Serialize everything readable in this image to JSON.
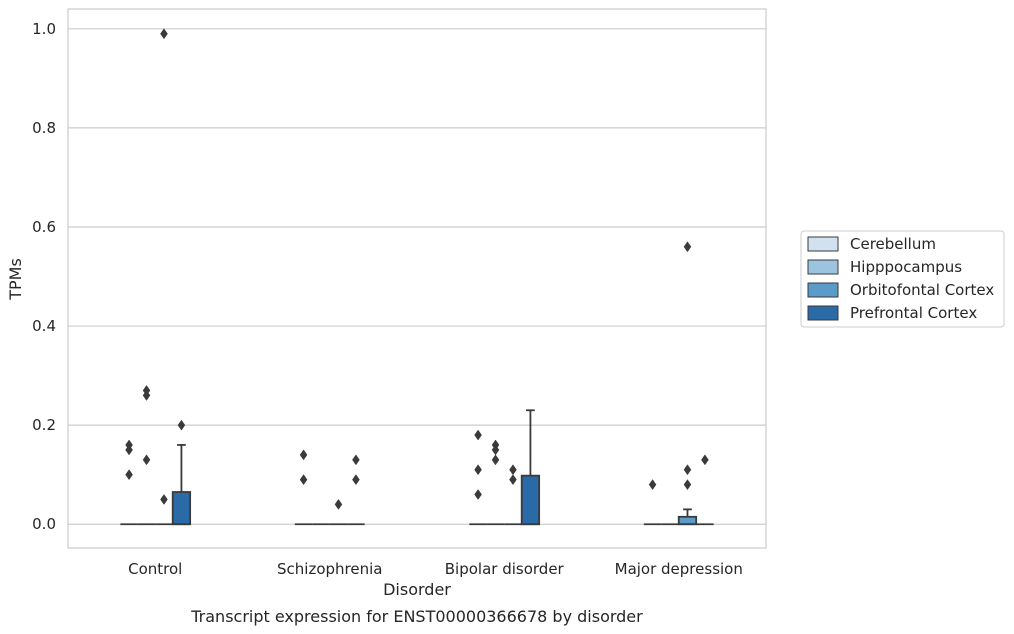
{
  "chart_data": {
    "type": "box",
    "xlabel": "Disorder",
    "ylabel": "TPMs",
    "caption": "Transcript expression for ENST00000366678 by disorder",
    "categories": [
      "Control",
      "Schizophrenia",
      "Bipolar disorder",
      "Major depression"
    ],
    "ylim": [
      -0.048,
      1.04
    ],
    "yticks": [
      0.0,
      0.2,
      0.4,
      0.6,
      0.8,
      1.0
    ],
    "ytick_labels": [
      "0.0",
      "0.2",
      "0.4",
      "0.6",
      "0.8",
      "1.0"
    ],
    "grid": "horizontal",
    "legend_position": "right",
    "series": [
      {
        "name": "Cerebellum",
        "color": "#d1e1f0",
        "boxes": [
          {
            "q1": 0,
            "median": 0,
            "q3": 0,
            "whisker_low": 0,
            "whisker_high": 0,
            "outliers": [
              0.1,
              0.15,
              0.16
            ]
          },
          {
            "q1": 0,
            "median": 0,
            "q3": 0,
            "whisker_low": 0,
            "whisker_high": 0,
            "outliers": [
              0.09,
              0.14
            ]
          },
          {
            "q1": 0,
            "median": 0,
            "q3": 0,
            "whisker_low": 0,
            "whisker_high": 0,
            "outliers": [
              0.06,
              0.11,
              0.18
            ]
          },
          {
            "q1": 0,
            "median": 0,
            "q3": 0,
            "whisker_low": 0,
            "whisker_high": 0,
            "outliers": [
              0.08
            ]
          }
        ]
      },
      {
        "name": "Hipppocampus",
        "color": "#9cc4df",
        "boxes": [
          {
            "q1": 0,
            "median": 0,
            "q3": 0,
            "whisker_low": 0,
            "whisker_high": 0,
            "outliers": [
              0.13,
              0.26,
              0.27
            ]
          },
          {
            "q1": 0,
            "median": 0,
            "q3": 0,
            "whisker_low": 0,
            "whisker_high": 0,
            "outliers": []
          },
          {
            "q1": 0,
            "median": 0,
            "q3": 0,
            "whisker_low": 0,
            "whisker_high": 0,
            "outliers": [
              0.13,
              0.15,
              0.16
            ]
          },
          {
            "q1": 0,
            "median": 0,
            "q3": 0,
            "whisker_low": 0,
            "whisker_high": 0,
            "outliers": []
          }
        ]
      },
      {
        "name": "Orbitofontal Cortex",
        "color": "#5b9bc9",
        "boxes": [
          {
            "q1": 0,
            "median": 0,
            "q3": 0,
            "whisker_low": 0,
            "whisker_high": 0,
            "outliers": [
              0.05,
              0.99
            ]
          },
          {
            "q1": 0,
            "median": 0,
            "q3": 0,
            "whisker_low": 0,
            "whisker_high": 0,
            "outliers": [
              0.04
            ]
          },
          {
            "q1": 0,
            "median": 0,
            "q3": 0,
            "whisker_low": 0,
            "whisker_high": 0,
            "outliers": [
              0.09,
              0.11
            ]
          },
          {
            "q1": 0,
            "median": 0,
            "q3": 0.015,
            "whisker_low": 0,
            "whisker_high": 0.03,
            "outliers": [
              0.08,
              0.11,
              0.56
            ]
          }
        ]
      },
      {
        "name": "Prefrontal Cortex",
        "color": "#2a6aa6",
        "boxes": [
          {
            "q1": 0,
            "median": 0,
            "q3": 0.065,
            "whisker_low": 0,
            "whisker_high": 0.16,
            "outliers": [
              0.2
            ]
          },
          {
            "q1": 0,
            "median": 0,
            "q3": 0,
            "whisker_low": 0,
            "whisker_high": 0,
            "outliers": [
              0.09,
              0.13
            ]
          },
          {
            "q1": 0,
            "median": 0,
            "q3": 0.098,
            "whisker_low": 0,
            "whisker_high": 0.23,
            "outliers": []
          },
          {
            "q1": 0,
            "median": 0,
            "q3": 0,
            "whisker_low": 0,
            "whisker_high": 0,
            "outliers": [
              0.13
            ]
          }
        ]
      }
    ]
  }
}
